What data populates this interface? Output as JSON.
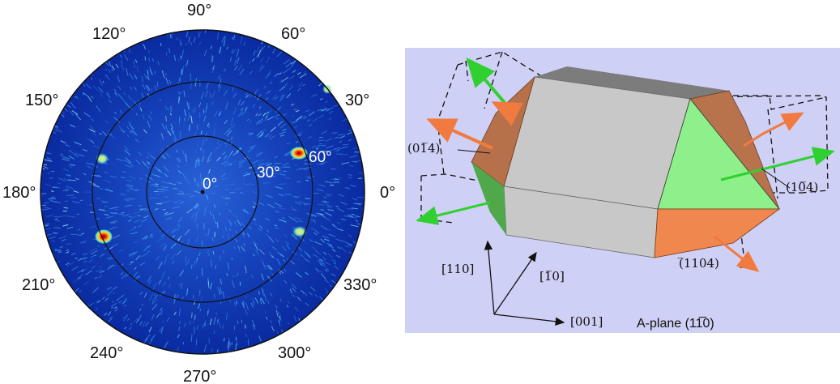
{
  "pole_figure": {
    "azimuth_labels": [
      "0°",
      "30°",
      "60°",
      "90°",
      "120°",
      "150°",
      "180°",
      "210°",
      "240°",
      "270°",
      "300°",
      "330°"
    ],
    "ring_labels": [
      "0°",
      "30°",
      "60°"
    ],
    "colors": {
      "background": "#0b2aa8",
      "grid": "#111111",
      "speckle": "#3fc6ff",
      "hot": "#ff3b0a",
      "warm": "#ffe14a"
    }
  },
  "crystal": {
    "facet_labels": {
      "f_01m14": "(01̅4)",
      "f_10m14": "(10̅4)",
      "f_m1104": "(̅1104)"
    },
    "facet_labels_raw": [
      "(01̄1̄4)",
      "(101̄4)",
      "(1̄104)"
    ],
    "direction_labels": [
      "[110]",
      "[1̅0]",
      "[001]"
    ],
    "caption": "A-plane (11̅0)",
    "colors": {
      "background": "#cfd0f5",
      "top": "#7a7a7a",
      "front": "#c9c9c9",
      "brown": "#b7714a",
      "green": "#8df08a",
      "orange": "#f08a50"
    }
  }
}
